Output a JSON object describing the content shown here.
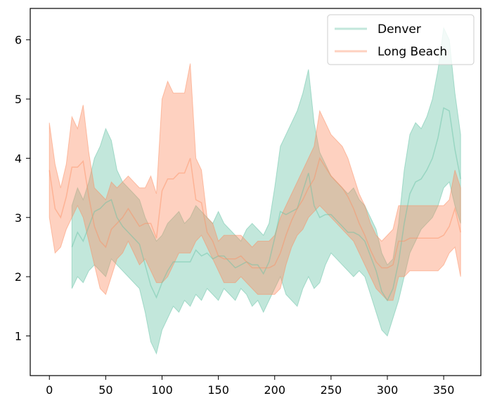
{
  "chart_data": {
    "type": "area",
    "title": "",
    "xlabel": "",
    "ylabel": "",
    "xlim": [
      -17,
      383
    ],
    "ylim": [
      0.33,
      6.53
    ],
    "xticks": [
      0,
      50,
      100,
      150,
      200,
      250,
      300,
      350
    ],
    "yticks": [
      1,
      2,
      3,
      4,
      5,
      6
    ],
    "grid": false,
    "legend_position": "top-right",
    "series": [
      {
        "name": "Denver",
        "color": "#66c2a5",
        "x": [
          20,
          25,
          30,
          35,
          40,
          45,
          50,
          55,
          60,
          65,
          70,
          75,
          80,
          85,
          90,
          95,
          100,
          105,
          110,
          115,
          120,
          125,
          130,
          135,
          140,
          145,
          150,
          155,
          160,
          165,
          170,
          175,
          180,
          185,
          190,
          195,
          200,
          205,
          210,
          215,
          220,
          225,
          230,
          235,
          240,
          245,
          250,
          255,
          260,
          265,
          270,
          275,
          280,
          285,
          290,
          295,
          300,
          305,
          310,
          315,
          320,
          325,
          330,
          335,
          340,
          345,
          350,
          355,
          360,
          365
        ],
        "upper": [
          3.2,
          3.5,
          3.3,
          3.6,
          4.0,
          4.2,
          4.5,
          4.3,
          3.8,
          3.6,
          3.5,
          3.4,
          3.3,
          3.0,
          2.8,
          2.6,
          2.7,
          2.9,
          3.0,
          3.1,
          2.9,
          3.0,
          3.2,
          3.1,
          3.0,
          2.9,
          3.1,
          2.9,
          2.8,
          2.7,
          2.6,
          2.8,
          2.9,
          2.8,
          2.7,
          2.9,
          3.5,
          4.2,
          4.4,
          4.6,
          4.8,
          5.1,
          5.5,
          4.6,
          4.1,
          3.9,
          3.7,
          3.6,
          3.5,
          3.4,
          3.5,
          3.3,
          3.2,
          3.0,
          2.8,
          2.4,
          2.2,
          2.3,
          2.9,
          3.8,
          4.4,
          4.6,
          4.5,
          4.7,
          5.0,
          5.5,
          6.2,
          6.0,
          5.1,
          4.4
        ],
        "lower": [
          1.8,
          2.0,
          1.9,
          2.1,
          2.2,
          2.1,
          2.0,
          2.3,
          2.2,
          2.1,
          2.0,
          1.9,
          1.8,
          1.4,
          0.9,
          0.7,
          1.1,
          1.3,
          1.5,
          1.4,
          1.6,
          1.5,
          1.7,
          1.6,
          1.8,
          1.7,
          1.6,
          1.8,
          1.7,
          1.6,
          1.8,
          1.7,
          1.5,
          1.6,
          1.4,
          1.6,
          1.8,
          2.0,
          1.7,
          1.6,
          1.5,
          1.8,
          2.0,
          1.8,
          1.9,
          2.2,
          2.4,
          2.3,
          2.2,
          2.1,
          2.0,
          2.1,
          2.0,
          1.7,
          1.4,
          1.1,
          1.0,
          1.3,
          1.6,
          2.0,
          2.4,
          2.6,
          2.8,
          2.9,
          3.0,
          3.2,
          3.5,
          3.6,
          3.2,
          2.9
        ]
      },
      {
        "name": "Long Beach",
        "color": "#fc8d62",
        "x": [
          0,
          5,
          10,
          15,
          20,
          25,
          30,
          35,
          40,
          45,
          50,
          55,
          60,
          65,
          70,
          75,
          80,
          85,
          90,
          95,
          100,
          105,
          110,
          115,
          120,
          125,
          130,
          135,
          140,
          145,
          150,
          155,
          160,
          165,
          170,
          175,
          180,
          185,
          190,
          195,
          200,
          205,
          210,
          215,
          220,
          225,
          230,
          235,
          240,
          245,
          250,
          255,
          260,
          265,
          270,
          275,
          280,
          285,
          290,
          295,
          300,
          305,
          310,
          315,
          320,
          325,
          330,
          335,
          340,
          345,
          350,
          355,
          360,
          365
        ],
        "upper": [
          4.6,
          3.9,
          3.5,
          3.9,
          4.7,
          4.5,
          4.9,
          4.1,
          3.5,
          3.4,
          3.3,
          3.6,
          3.5,
          3.6,
          3.7,
          3.6,
          3.5,
          3.5,
          3.7,
          3.4,
          5.0,
          5.3,
          5.1,
          5.1,
          5.1,
          5.6,
          4.0,
          3.8,
          3.0,
          2.9,
          2.6,
          2.7,
          2.7,
          2.7,
          2.7,
          2.6,
          2.5,
          2.6,
          2.6,
          2.6,
          2.7,
          3.0,
          3.2,
          3.4,
          3.6,
          3.8,
          4.0,
          4.2,
          4.8,
          4.6,
          4.4,
          4.3,
          4.2,
          4.0,
          3.7,
          3.4,
          3.2,
          2.9,
          2.7,
          2.6,
          2.7,
          2.8,
          3.2,
          3.2,
          3.2,
          3.2,
          3.2,
          3.2,
          3.2,
          3.2,
          3.2,
          3.3,
          3.8,
          3.5
        ],
        "lower": [
          3.0,
          2.4,
          2.5,
          2.8,
          3.0,
          3.2,
          3.0,
          2.6,
          2.2,
          1.8,
          1.7,
          2.0,
          2.3,
          2.4,
          2.6,
          2.4,
          2.2,
          2.3,
          2.1,
          1.9,
          1.9,
          2.0,
          2.2,
          2.4,
          2.4,
          2.4,
          2.6,
          2.7,
          2.5,
          2.3,
          2.1,
          1.9,
          1.9,
          1.9,
          2.0,
          1.9,
          1.8,
          1.7,
          1.7,
          1.7,
          1.7,
          1.8,
          2.2,
          2.5,
          2.7,
          2.8,
          3.0,
          3.1,
          3.2,
          3.1,
          3.0,
          2.9,
          2.8,
          2.7,
          2.6,
          2.4,
          2.2,
          2.0,
          1.8,
          1.7,
          1.6,
          1.6,
          2.0,
          2.0,
          2.1,
          2.1,
          2.1,
          2.1,
          2.1,
          2.1,
          2.2,
          2.4,
          2.5,
          2.0
        ]
      }
    ]
  }
}
